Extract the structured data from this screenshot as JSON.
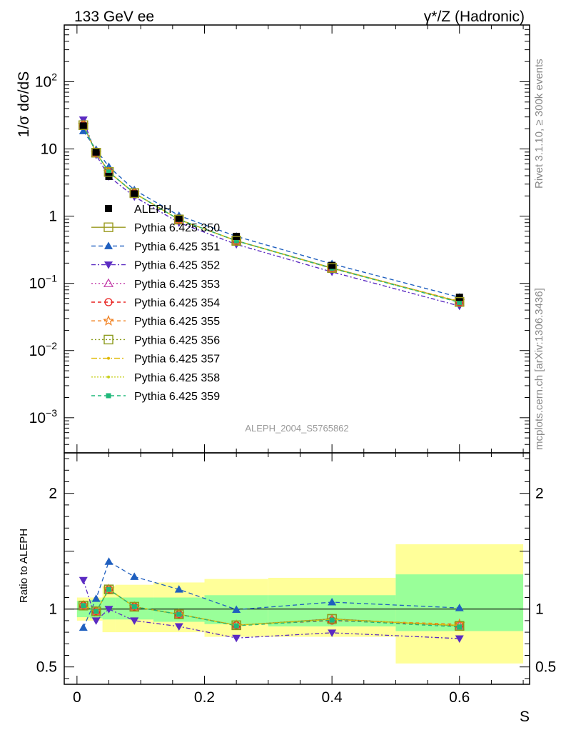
{
  "header": {
    "left_title": "133 GeV ee",
    "right_title": "γ*/Z (Hadronic)"
  },
  "side": {
    "rivet": "Rivet 3.1.10, ≥ 300k events",
    "mcplots": "mcplots.cern.ch [arXiv:1306.3436]"
  },
  "analysis_label": "ALEPH_2004_S5765862",
  "colors": {
    "band_yellow": "#ffff99",
    "band_green": "#99ff99",
    "data": "#000000"
  },
  "chart_data": [
    {
      "type": "line",
      "scale": "log",
      "ylabel": "1/σ  dσ/dS",
      "ylim": [
        0.0003,
        700
      ],
      "y_ticks": [
        {
          "v": 0.001,
          "base": "10",
          "exp": "−3"
        },
        {
          "v": 0.01,
          "base": "10",
          "exp": "−2"
        },
        {
          "v": 0.1,
          "base": "10",
          "exp": "−1"
        },
        {
          "v": 1,
          "label": "1"
        },
        {
          "v": 10,
          "label": "10"
        },
        {
          "v": 100,
          "base": "10",
          "exp": "2"
        }
      ],
      "x": [
        0.01,
        0.03,
        0.05,
        0.09,
        0.16,
        0.25,
        0.4,
        0.6
      ],
      "data": {
        "name": "ALEPH",
        "values": [
          22.0,
          9.0,
          3.9,
          2.15,
          0.93,
          0.5,
          0.185,
          0.062
        ]
      },
      "series": [
        {
          "name": "Pythia 6.425 350",
          "color": "#9a9a1e",
          "marker": "square-open",
          "dash": "",
          "values": [
            22.6,
            8.8,
            4.55,
            2.2,
            0.89,
            0.43,
            0.17,
            0.053
          ]
        },
        {
          "name": "Pythia 6.425 351",
          "color": "#1f5fbf",
          "marker": "triangle-up",
          "dash": "6,4",
          "values": [
            18.5,
            9.8,
            5.45,
            2.46,
            1.02,
            0.5,
            0.195,
            0.062
          ]
        },
        {
          "name": "Pythia 6.425 352",
          "color": "#5b2bc2",
          "marker": "triangle-down",
          "dash": "6,3,2,3",
          "values": [
            27.2,
            8.15,
            3.9,
            1.95,
            0.8,
            0.38,
            0.148,
            0.046
          ]
        },
        {
          "name": "Pythia 6.425 353",
          "color": "#c23ba8",
          "marker": "triangle-open",
          "dash": "2,3",
          "values": [
            22.5,
            8.8,
            4.55,
            2.2,
            0.89,
            0.43,
            0.169,
            0.053
          ]
        },
        {
          "name": "Pythia 6.425 354",
          "color": "#e8201e",
          "marker": "circle-open",
          "dash": "5,4",
          "values": [
            22.6,
            8.8,
            4.55,
            2.2,
            0.89,
            0.43,
            0.167,
            0.053
          ]
        },
        {
          "name": "Pythia 6.425 355",
          "color": "#f07d1a",
          "marker": "star-open",
          "dash": "5,4",
          "values": [
            22.6,
            8.8,
            4.55,
            2.2,
            0.89,
            0.43,
            0.168,
            0.054
          ]
        },
        {
          "name": "Pythia 6.425 356",
          "color": "#8a9a1a",
          "marker": "square-open",
          "dash": "2,3",
          "values": [
            22.6,
            8.8,
            4.55,
            2.2,
            0.89,
            0.43,
            0.169,
            0.053
          ]
        },
        {
          "name": "Pythia 6.425 357",
          "color": "#e0b800",
          "marker": "dot",
          "dash": "8,3,2,3",
          "values": [
            22.6,
            8.8,
            4.55,
            2.2,
            0.89,
            0.43,
            0.168,
            0.053
          ]
        },
        {
          "name": "Pythia 6.425 358",
          "color": "#c8d020",
          "marker": "dot",
          "dash": "2,2",
          "values": [
            22.6,
            8.8,
            4.55,
            2.2,
            0.89,
            0.43,
            0.168,
            0.053
          ]
        },
        {
          "name": "Pythia 6.425 359",
          "color": "#1fb87a",
          "marker": "square-filled",
          "dash": "5,4",
          "values": [
            22.6,
            8.8,
            4.55,
            2.2,
            0.89,
            0.43,
            0.168,
            0.052
          ]
        }
      ]
    },
    {
      "type": "line",
      "ylabel": "Ratio to ALEPH",
      "xlabel": "S",
      "ylim": [
        0.35,
        2.35
      ],
      "xlim": [
        -0.02,
        0.71
      ],
      "y_ticks": [
        0.5,
        1,
        2
      ],
      "x_ticks": [
        0,
        0.2,
        0.4,
        0.6
      ],
      "x_tick_labels": [
        "0",
        "0.2",
        "0.4",
        "0.6"
      ],
      "y_tick_labels": [
        "0.5",
        "1",
        "2"
      ],
      "bins": [
        {
          "lo": 0.0,
          "hi": 0.02,
          "green": [
            0.93,
            1.07
          ],
          "yellow": [
            0.9,
            1.1
          ]
        },
        {
          "lo": 0.02,
          "hi": 0.04,
          "green": [
            0.92,
            1.08
          ],
          "yellow": [
            0.9,
            1.1
          ]
        },
        {
          "lo": 0.04,
          "hi": 0.06,
          "green": [
            0.91,
            1.1
          ],
          "yellow": [
            0.8,
            1.2
          ]
        },
        {
          "lo": 0.06,
          "hi": 0.12,
          "green": [
            0.91,
            1.1
          ],
          "yellow": [
            0.8,
            1.21
          ]
        },
        {
          "lo": 0.12,
          "hi": 0.2,
          "green": [
            0.89,
            1.1
          ],
          "yellow": [
            0.8,
            1.23
          ]
        },
        {
          "lo": 0.2,
          "hi": 0.3,
          "green": [
            0.87,
            1.12
          ],
          "yellow": [
            0.76,
            1.26
          ]
        },
        {
          "lo": 0.3,
          "hi": 0.5,
          "green": [
            0.85,
            1.12
          ],
          "yellow": [
            0.76,
            1.27
          ]
        },
        {
          "lo": 0.5,
          "hi": 0.7,
          "green": [
            0.81,
            1.3
          ],
          "yellow": [
            0.53,
            1.56
          ]
        }
      ],
      "x": [
        0.01,
        0.03,
        0.05,
        0.09,
        0.16,
        0.25,
        0.4,
        0.6
      ],
      "series": [
        {
          "name": "Pythia 6.425 350",
          "values": [
            1.03,
            0.98,
            1.17,
            1.02,
            0.955,
            0.86,
            0.915,
            0.855
          ]
        },
        {
          "name": "Pythia 6.425 351",
          "values": [
            0.84,
            1.09,
            1.41,
            1.28,
            1.17,
            0.995,
            1.06,
            1.01
          ]
        },
        {
          "name": "Pythia 6.425 352",
          "values": [
            1.25,
            0.9,
            1.0,
            0.9,
            0.85,
            0.75,
            0.795,
            0.745
          ]
        },
        {
          "name": "Pythia 6.425 353",
          "values": [
            1.03,
            0.98,
            1.17,
            1.02,
            0.955,
            0.86,
            0.915,
            0.855
          ]
        },
        {
          "name": "Pythia 6.425 354",
          "values": [
            1.03,
            0.98,
            1.17,
            1.02,
            0.955,
            0.86,
            0.9,
            0.86
          ]
        },
        {
          "name": "Pythia 6.425 355",
          "values": [
            1.03,
            0.98,
            1.17,
            1.02,
            0.955,
            0.86,
            0.905,
            0.87
          ]
        },
        {
          "name": "Pythia 6.425 356",
          "values": [
            1.03,
            0.98,
            1.17,
            1.02,
            0.955,
            0.86,
            0.915,
            0.855
          ]
        },
        {
          "name": "Pythia 6.425 357",
          "values": [
            1.03,
            0.98,
            1.17,
            1.02,
            0.955,
            0.86,
            0.91,
            0.86
          ]
        },
        {
          "name": "Pythia 6.425 358",
          "values": [
            1.03,
            0.98,
            1.17,
            1.02,
            0.955,
            0.86,
            0.91,
            0.86
          ]
        },
        {
          "name": "Pythia 6.425 359",
          "values": [
            1.03,
            0.98,
            1.17,
            1.02,
            0.955,
            0.855,
            0.905,
            0.845
          ]
        }
      ]
    }
  ]
}
